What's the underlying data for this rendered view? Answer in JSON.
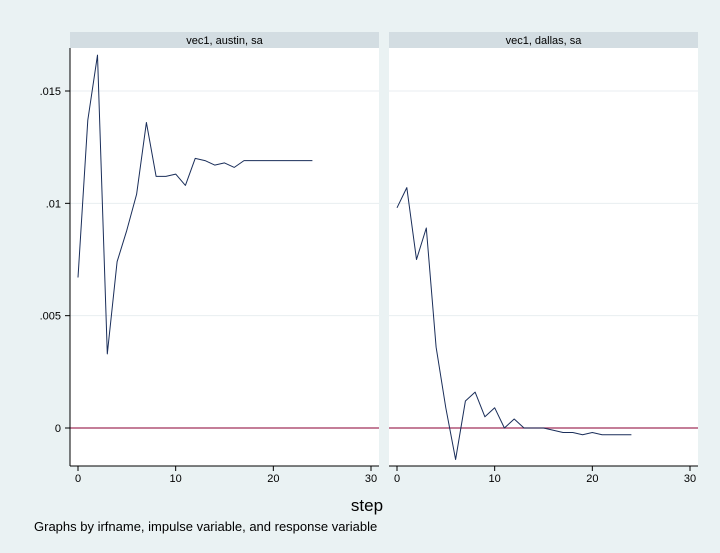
{
  "chart_data": {
    "type": "line",
    "xlabel": "step",
    "note": "Graphs by irfname, impulse variable, and response variable",
    "xlim": [
      0,
      30
    ],
    "ylim": [
      -0.0015,
      0.0168
    ],
    "x_ticks": [
      0,
      10,
      20,
      30
    ],
    "y_ticks": [
      0,
      0.005,
      0.01,
      0.015
    ],
    "y_tick_labels": [
      "0",
      ".005",
      ".01",
      ".015"
    ],
    "zero_line": 0,
    "colors": {
      "background": "#eaf2f3",
      "plot": "#ffffff",
      "strip": "#d3dde2",
      "line": "#1a2e5a",
      "zero_line": "#a0305a"
    },
    "panels": [
      {
        "title": "vec1, austin, sa",
        "x": [
          0,
          1,
          2,
          3,
          4,
          5,
          6,
          7,
          8,
          9,
          10,
          11,
          12,
          13,
          14,
          15,
          16,
          17,
          18,
          19,
          20,
          21,
          22,
          23,
          24
        ],
        "y": [
          0.0067,
          0.0137,
          0.0166,
          0.0033,
          0.0074,
          0.0088,
          0.0104,
          0.0136,
          0.0112,
          0.0112,
          0.0113,
          0.0108,
          0.012,
          0.0119,
          0.0117,
          0.0118,
          0.0116,
          0.0119,
          0.0119,
          0.0119,
          0.0119,
          0.0119,
          0.0119,
          0.0119,
          0.0119
        ]
      },
      {
        "title": "vec1, dallas, sa",
        "x": [
          0,
          1,
          2,
          3,
          4,
          5,
          6,
          7,
          8,
          9,
          10,
          11,
          12,
          13,
          14,
          15,
          16,
          17,
          18,
          19,
          20,
          21,
          22,
          23,
          24
        ],
        "y": [
          0.0098,
          0.0107,
          0.0075,
          0.0089,
          0.0036,
          0.0009,
          -0.0014,
          0.0012,
          0.0016,
          0.0005,
          0.0009,
          0.0,
          0.0004,
          0.0,
          0.0,
          0.0,
          -0.0001,
          -0.0002,
          -0.0002,
          -0.0003,
          -0.0002,
          -0.0003,
          -0.0003,
          -0.0003,
          -0.0003
        ]
      }
    ]
  }
}
